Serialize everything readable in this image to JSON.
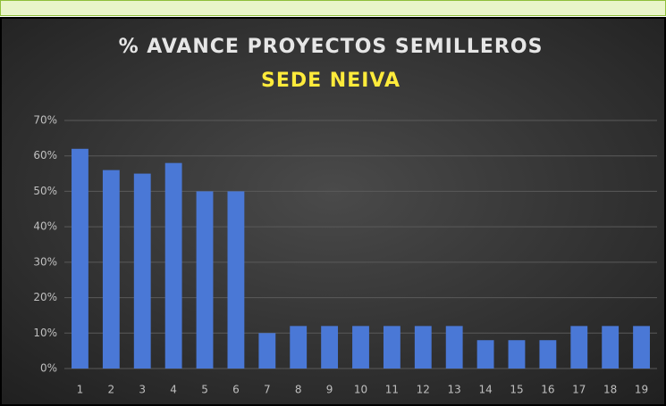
{
  "chart_data": {
    "type": "bar",
    "title": "% AVANCE PROYECTOS SEMILLEROS",
    "subtitle": "SEDE NEIVA",
    "categories": [
      "1",
      "2",
      "3",
      "4",
      "5",
      "6",
      "7",
      "8",
      "9",
      "10",
      "11",
      "12",
      "13",
      "14",
      "15",
      "16",
      "17",
      "18",
      "19"
    ],
    "values": [
      62,
      56,
      55,
      58,
      50,
      50,
      10,
      12,
      12,
      12,
      12,
      12,
      12,
      8,
      8,
      8,
      12,
      12,
      12
    ],
    "color": "#4a78d6",
    "ylim": [
      0,
      70
    ],
    "yticks": [
      {
        "value": 0,
        "label": "0%"
      },
      {
        "value": 10,
        "label": "10%"
      },
      {
        "value": 20,
        "label": "20%"
      },
      {
        "value": 30,
        "label": "30%"
      },
      {
        "value": 40,
        "label": "40%"
      },
      {
        "value": 50,
        "label": "50%"
      },
      {
        "value": 60,
        "label": "60%"
      },
      {
        "value": 70,
        "label": "70%"
      }
    ],
    "grid": true
  }
}
